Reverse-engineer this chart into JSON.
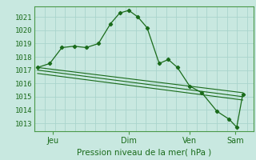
{
  "bg_color": "#c8e8e0",
  "grid_color": "#aad4cc",
  "line_color": "#1a6b1a",
  "marker_color": "#1a6b1a",
  "title": "Pression niveau de la mer( hPa )",
  "ylabel_ticks": [
    1013,
    1014,
    1015,
    1016,
    1017,
    1018,
    1019,
    1020,
    1021
  ],
  "ylim": [
    1012.4,
    1021.8
  ],
  "day_labels": [
    "Jeu",
    "Dim",
    "Ven",
    "Sam"
  ],
  "day_positions": [
    0.5,
    3.0,
    5.0,
    6.5
  ],
  "xlim": [
    -0.1,
    7.1
  ],
  "series1_x": [
    0.0,
    0.4,
    0.8,
    1.2,
    1.6,
    2.0,
    2.4,
    2.7,
    3.0,
    3.3,
    3.6,
    4.0,
    4.3,
    4.6,
    5.0,
    5.4,
    5.9,
    6.3,
    6.55,
    6.75
  ],
  "series1_y": [
    1017.2,
    1017.5,
    1018.7,
    1018.8,
    1018.7,
    1019.0,
    1020.5,
    1021.3,
    1021.5,
    1021.0,
    1020.2,
    1017.5,
    1017.8,
    1017.2,
    1015.8,
    1015.3,
    1013.9,
    1013.3,
    1012.7,
    1015.2
  ],
  "series2_x": [
    0.0,
    6.75
  ],
  "series2_y": [
    1017.2,
    1015.3
  ],
  "series3_x": [
    0.0,
    6.75
  ],
  "series3_y": [
    1017.0,
    1015.0
  ],
  "series4_x": [
    0.0,
    6.75
  ],
  "series4_y": [
    1016.75,
    1014.75
  ],
  "vert_grid_step": 0.333,
  "horiz_grid_step": 1
}
